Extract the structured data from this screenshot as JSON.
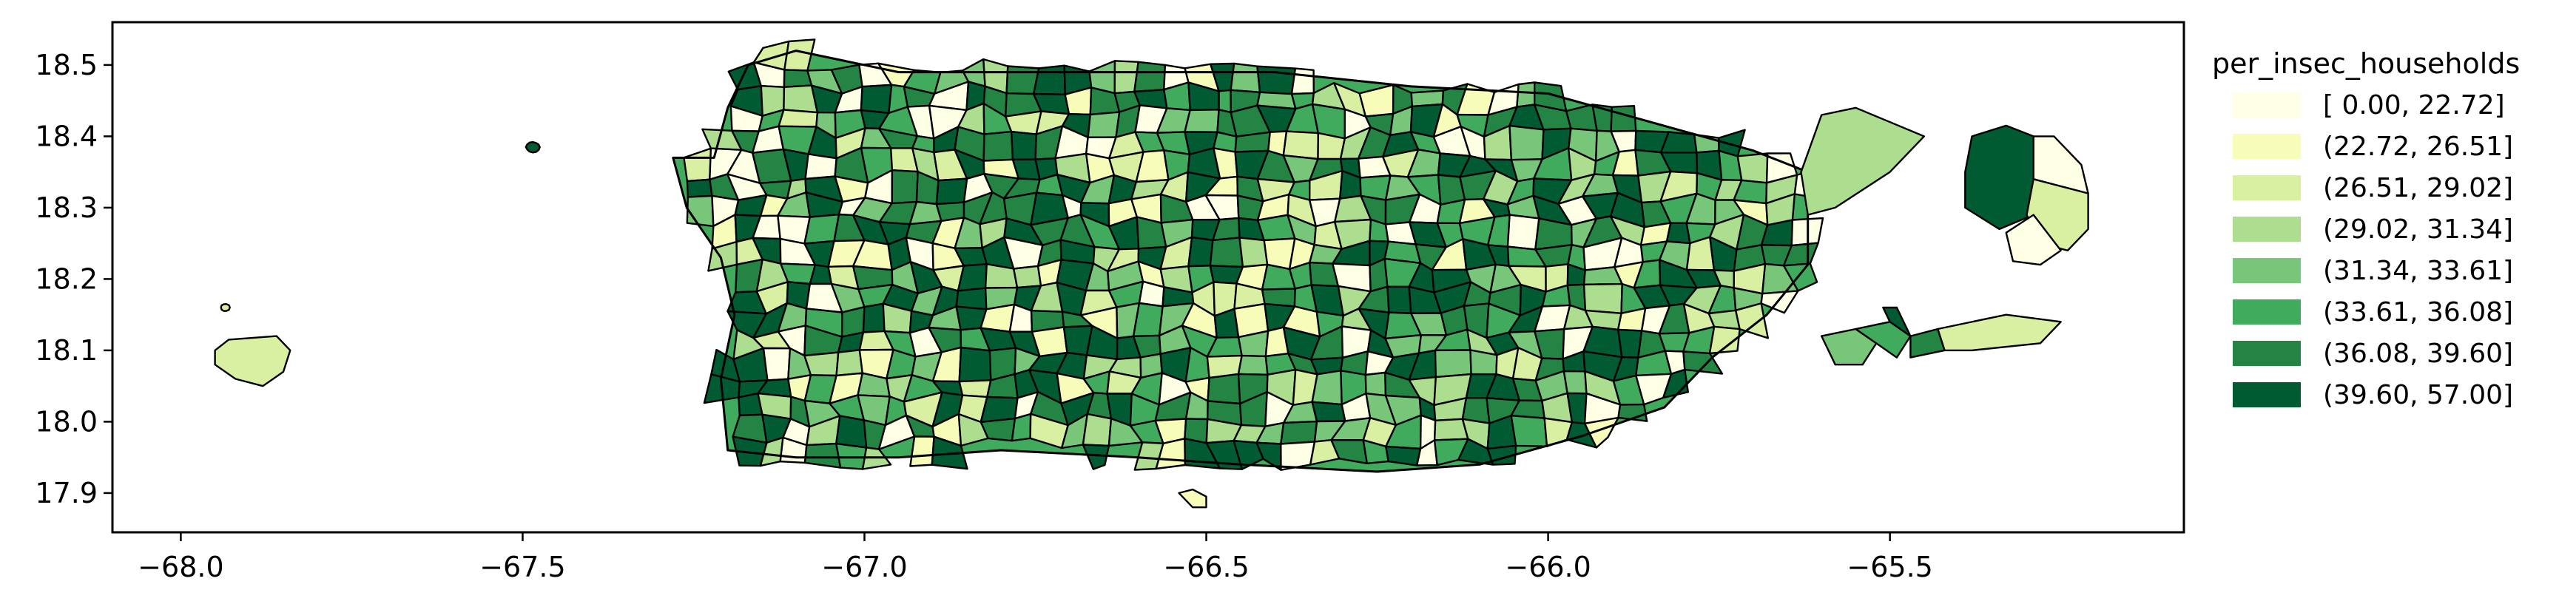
{
  "chart_data": {
    "type": "choropleth",
    "legend_title": "per_insec_households",
    "legend_placement": "right",
    "x_ticks": [
      "−68.0",
      "−67.5",
      "−67.0",
      "−66.5",
      "−66.0",
      "−65.5"
    ],
    "x_tick_values": [
      -68.0,
      -67.5,
      -67.0,
      -66.5,
      -66.0,
      -65.5
    ],
    "y_ticks": [
      "18.5",
      "18.4",
      "18.3",
      "18.2",
      "18.1",
      "18.0",
      "17.9"
    ],
    "y_tick_values": [
      18.5,
      18.4,
      18.3,
      18.2,
      18.1,
      18.0,
      17.9
    ],
    "xlim": [
      -68.1,
      -65.07
    ],
    "ylim": [
      17.845,
      18.56
    ],
    "classes": [
      {
        "label": "[ 0.00, 22.72]",
        "color": "#ffffe5"
      },
      {
        "label": "(22.72, 26.51]",
        "color": "#f7fcb9"
      },
      {
        "label": "(26.51, 29.02]",
        "color": "#d9f0a3"
      },
      {
        "label": "(29.02, 31.34]",
        "color": "#addd8e"
      },
      {
        "label": "(31.34, 33.61]",
        "color": "#78c679"
      },
      {
        "label": "(33.61, 36.08]",
        "color": "#41ab5d"
      },
      {
        "label": "(36.08, 39.60]",
        "color": "#238443"
      },
      {
        "label": "(39.60, 57.00]",
        "color": "#005a32"
      }
    ]
  }
}
